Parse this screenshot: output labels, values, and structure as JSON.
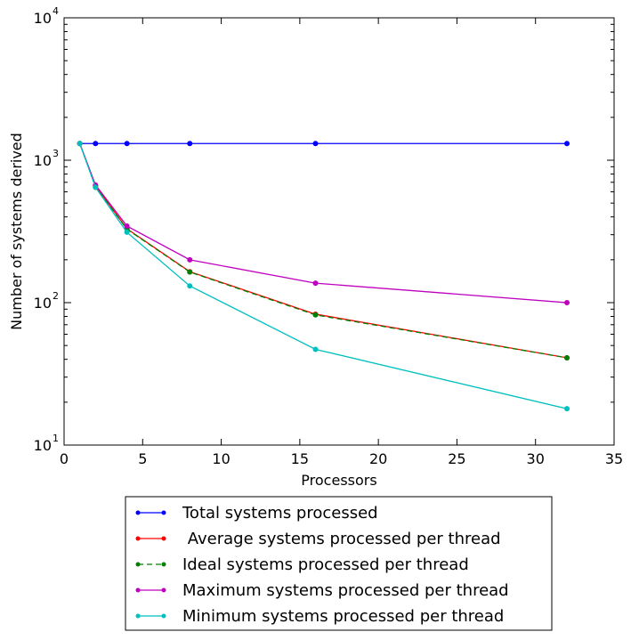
{
  "chart_data": {
    "type": "line",
    "xlabel": "Processors",
    "ylabel": "Number of systems derived",
    "xlim": [
      0,
      35
    ],
    "ylim": [
      10,
      10000
    ],
    "yscale": "log",
    "grid": false,
    "legend_position": "below",
    "x_ticks": [
      "0",
      "5",
      "10",
      "15",
      "20",
      "25",
      "30",
      "35"
    ],
    "y_ticks": [
      {
        "base": "10",
        "exp": "1",
        "value": 10
      },
      {
        "base": "10",
        "exp": "2",
        "value": 100
      },
      {
        "base": "10",
        "exp": "3",
        "value": 1000
      },
      {
        "base": "10",
        "exp": "4",
        "value": 10000
      }
    ],
    "x": [
      1,
      2,
      4,
      8,
      16,
      32
    ],
    "series": [
      {
        "name": "Total systems processed",
        "color": "#0000ff",
        "dash": "solid",
        "values": [
          1310,
          1310,
          1310,
          1310,
          1310,
          1310
        ]
      },
      {
        "name": " Average systems processed per thread",
        "color": "#ff0000",
        "dash": "solid",
        "values": [
          1310,
          660,
          330,
          165,
          83,
          41
        ]
      },
      {
        "name": "Ideal systems processed per thread",
        "color": "#008000",
        "dash": "dashed",
        "values": [
          1310,
          655,
          328,
          164,
          82,
          41
        ]
      },
      {
        "name": "Maximum systems processed per thread",
        "color": "#bf00bf",
        "dash": "solid",
        "values": [
          1310,
          670,
          345,
          200,
          137,
          100
        ]
      },
      {
        "name": "Minimum systems processed per thread",
        "color": "#00bfbf",
        "dash": "solid",
        "values": [
          1310,
          645,
          312,
          131,
          47,
          18
        ]
      }
    ]
  }
}
